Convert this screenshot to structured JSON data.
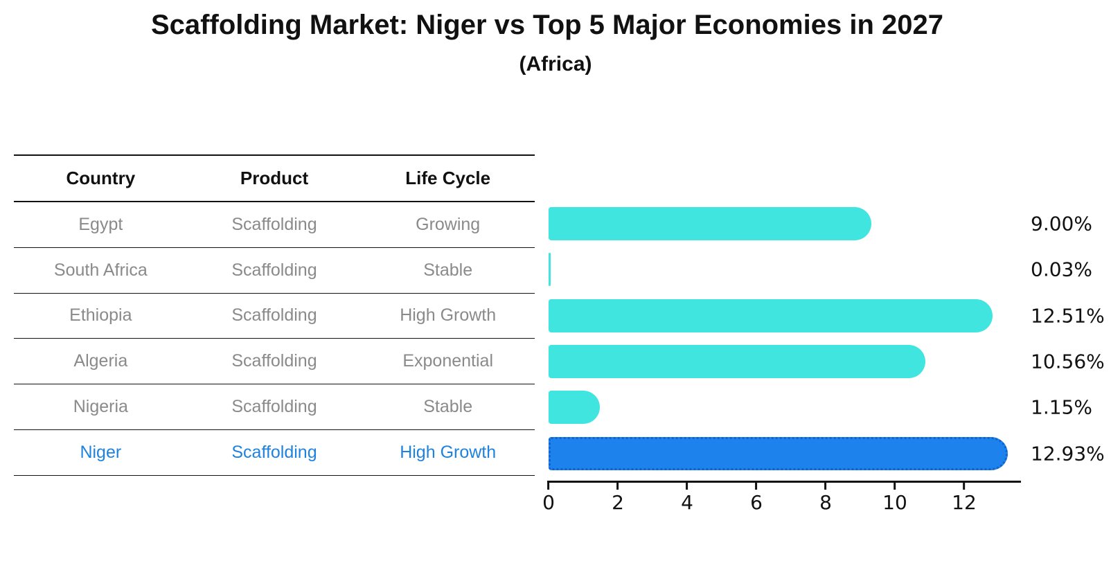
{
  "title": "Scaffolding Market: Niger vs Top 5 Major Economies in 2027",
  "subtitle": "(Africa)",
  "table": {
    "headers": [
      "Country",
      "Product",
      "Life Cycle"
    ],
    "rows": [
      {
        "country": "Egypt",
        "product": "Scaffolding",
        "life_cycle": "Growing",
        "highlight": false
      },
      {
        "country": "South Africa",
        "product": "Scaffolding",
        "life_cycle": "Stable",
        "highlight": false
      },
      {
        "country": "Ethiopia",
        "product": "Scaffolding",
        "life_cycle": "High Growth",
        "highlight": false
      },
      {
        "country": "Algeria",
        "product": "Scaffolding",
        "life_cycle": "Exponential",
        "highlight": false
      },
      {
        "country": "Nigeria",
        "product": "Scaffolding",
        "life_cycle": "Stable",
        "highlight": false
      },
      {
        "country": "Niger",
        "product": "Scaffolding",
        "life_cycle": "High Growth",
        "highlight": true
      }
    ]
  },
  "chart_data": {
    "type": "bar",
    "orientation": "horizontal",
    "title": "Scaffolding Market: Niger vs Top 5 Major Economies in 2027",
    "subtitle": "(Africa)",
    "categories": [
      "Egypt",
      "South Africa",
      "Ethiopia",
      "Algeria",
      "Nigeria",
      "Niger"
    ],
    "values": [
      9.0,
      0.03,
      12.51,
      10.56,
      1.15,
      12.93
    ],
    "value_labels": [
      "9.00%",
      "0.03%",
      "12.51%",
      "10.56%",
      "1.15%",
      "12.93%"
    ],
    "xlabel": "",
    "ylabel": "",
    "xlim": [
      0,
      13.6
    ],
    "x_ticks": [
      0,
      2,
      4,
      6,
      8,
      10,
      12
    ],
    "grid": false,
    "legend": false,
    "highlight_index": 5
  },
  "colors": {
    "bar_default": "#40E5DF",
    "bar_highlight": "#1E82EC",
    "bar_highlight_border": "#1262CE",
    "highlight_text": "#1E82E0",
    "row_text": "#8a8a8a",
    "axis_line": "#111111",
    "value_text": "#111111"
  }
}
